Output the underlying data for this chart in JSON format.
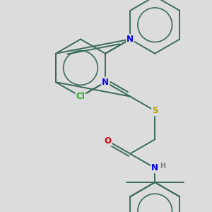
{
  "bg_color": "#dcdcdc",
  "bond_color": "#3a6b5a",
  "N_color": "#0000ee",
  "O_color": "#cc0000",
  "S_color": "#b8a000",
  "Cl_color": "#22aa22",
  "H_color": "#808080",
  "bond_lw": 1.4,
  "figsize": [
    3.0,
    3.0
  ],
  "dpi": 100,
  "xlim": [
    0.0,
    10.0
  ],
  "ylim": [
    0.0,
    10.0
  ]
}
